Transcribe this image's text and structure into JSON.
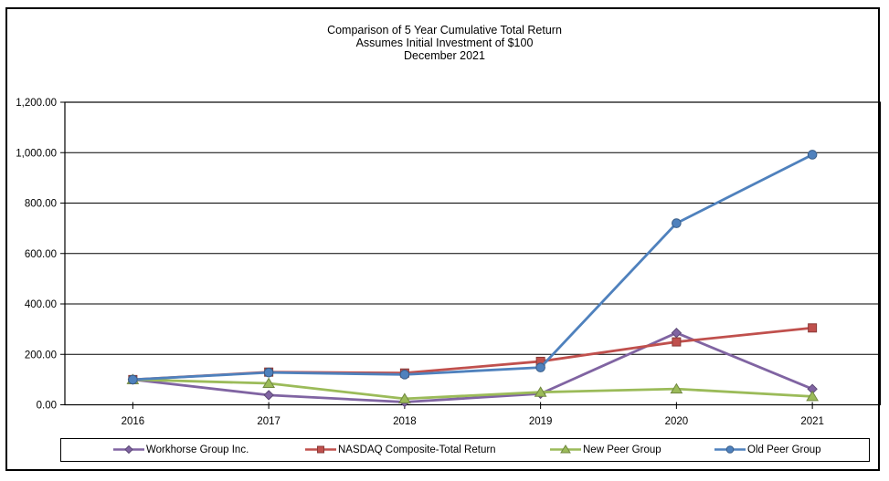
{
  "title": {
    "line1": "Comparison of 5 Year Cumulative Total Return",
    "line2": "Assumes Initial Investment of $100",
    "line3": "December 2021"
  },
  "chart_data": {
    "type": "line",
    "title": "Comparison of 5 Year Cumulative Total Return",
    "subtitle": "Assumes Initial Investment of $100",
    "date_label": "December 2021",
    "categories": [
      "2016",
      "2017",
      "2018",
      "2019",
      "2020",
      "2021"
    ],
    "series": [
      {
        "name": "Workhorse Group Inc.",
        "color": "#8064A2",
        "marker": "diamond",
        "values": [
          100.0,
          38.36,
          10.78,
          43.82,
          285.2,
          62.64
        ]
      },
      {
        "name": "NASDAQ Composite-Total Return",
        "color": "#C0504D",
        "marker": "square",
        "values": [
          100.0,
          129.64,
          125.96,
          172.18,
          249.51,
          304.85
        ]
      },
      {
        "name": "New Peer Group",
        "color": "#9BBB59",
        "marker": "triangle",
        "values": [
          100.0,
          85.0,
          24.0,
          50.0,
          63.0,
          33.0
        ]
      },
      {
        "name": "Old Peer Group",
        "color": "#4F81BD",
        "marker": "circle",
        "values": [
          100.0,
          128.0,
          120.0,
          148.0,
          720.0,
          992.0
        ]
      }
    ],
    "ylim": [
      0,
      1200
    ],
    "y_tick_step": 200,
    "y_tick_labels": [
      "0.00",
      "200.00",
      "400.00",
      "600.00",
      "800.00",
      "1,000.00",
      "1,200.00"
    ],
    "grid": "horizontal",
    "gridline_color": "#000000",
    "axis_color": "#000000",
    "text_color": "#000000",
    "legend_position": "bottom"
  }
}
